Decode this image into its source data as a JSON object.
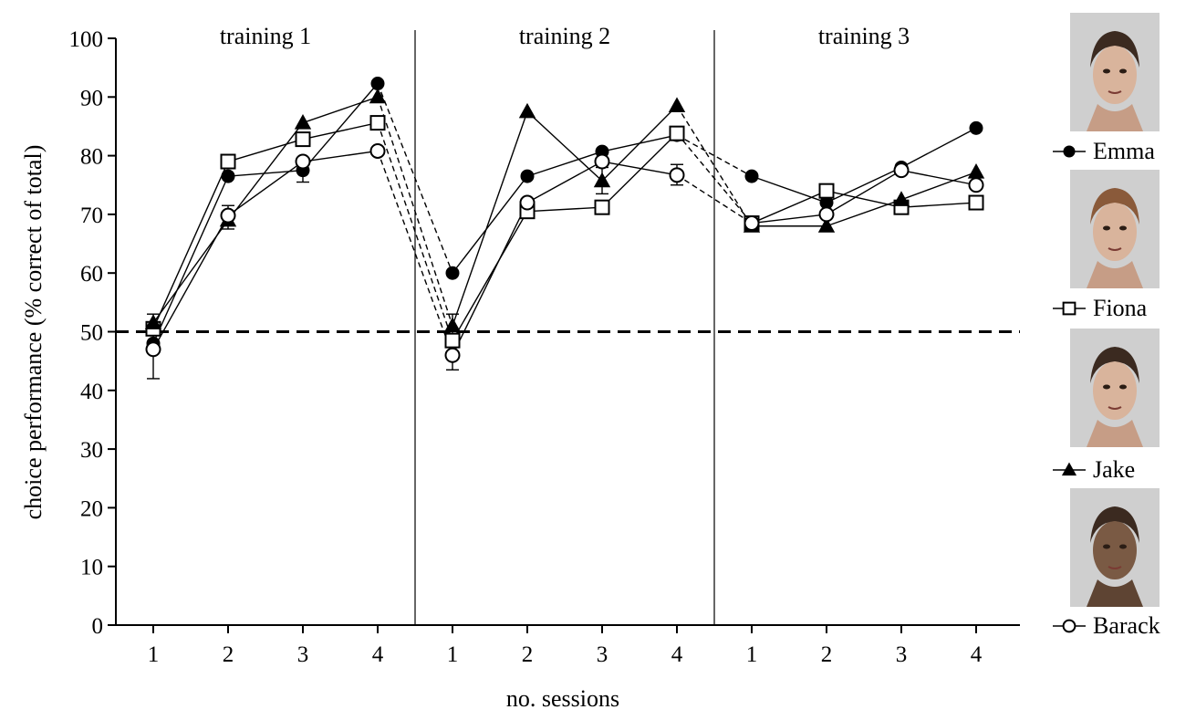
{
  "chart_data": {
    "type": "line",
    "ylabel": "choice performance (% correct of total)",
    "xlabel": "no. sessions",
    "ylim": [
      0,
      100
    ],
    "yticks": [
      0,
      10,
      20,
      30,
      40,
      50,
      60,
      70,
      80,
      90,
      100
    ],
    "chance_level": 50,
    "panels": [
      {
        "label": "training 1",
        "sessions": [
          "1",
          "2",
          "3",
          "4"
        ]
      },
      {
        "label": "training 2",
        "sessions": [
          "1",
          "2",
          "3",
          "4"
        ]
      },
      {
        "label": "training 3",
        "sessions": [
          "1",
          "2",
          "3",
          "4"
        ]
      }
    ],
    "series": [
      {
        "name": "Emma",
        "marker": "filled-circle",
        "values": [
          [
            48,
            76.5,
            77.5,
            92.3
          ],
          [
            60,
            76.5,
            80.7,
            83.5
          ],
          [
            76.5,
            72,
            78,
            84.7
          ]
        ]
      },
      {
        "name": "Fiona",
        "marker": "open-square",
        "values": [
          [
            50.5,
            79,
            82.8,
            85.6
          ],
          [
            48.5,
            70.5,
            71.2,
            83.8
          ],
          [
            68.5,
            74,
            71.2,
            72
          ]
        ]
      },
      {
        "name": "Jake",
        "marker": "filled-triangle",
        "values": [
          [
            51.5,
            69,
            85.6,
            90
          ],
          [
            51,
            87.5,
            75.7,
            88.5
          ],
          [
            68,
            68,
            72.5,
            77.2
          ]
        ]
      },
      {
        "name": "Barack",
        "marker": "open-circle",
        "values": [
          [
            47,
            69.8,
            79,
            80.8
          ],
          [
            46,
            72,
            79,
            76.7
          ],
          [
            68.5,
            70,
            77.5,
            75
          ]
        ]
      }
    ],
    "legend": "right"
  },
  "legend": [
    {
      "name": "Emma",
      "marker": "filled-circle",
      "portrait": "young-woman-updo-portrait"
    },
    {
      "name": "Fiona",
      "marker": "open-square",
      "portrait": "woman-bob-haircut-portrait"
    },
    {
      "name": "Jake",
      "marker": "filled-triangle",
      "portrait": "man-dark-hair-portrait"
    },
    {
      "name": "Barack",
      "marker": "open-circle",
      "portrait": "man-short-hair-portrait"
    }
  ]
}
